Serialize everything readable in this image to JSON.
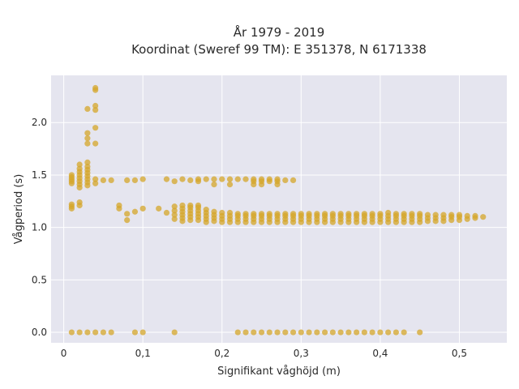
{
  "chart_data": {
    "type": "scatter",
    "title": "År 1979 - 2019",
    "subtitle": "Koordinat (Sweref 99 TM): E 351378, N 6171338",
    "xlabel": "Signifikant våghöjd (m)",
    "ylabel": "Vågperiod (s)",
    "xlim": [
      -0.016,
      0.56
    ],
    "ylim": [
      -0.1,
      2.45
    ],
    "xticks": [
      0,
      0.1,
      0.2,
      0.3,
      0.4,
      0.5
    ],
    "xtick_labels": [
      "0",
      "0,1",
      "0,2",
      "0,3",
      "0,4",
      "0,5"
    ],
    "yticks": [
      0,
      0.5,
      1,
      1.5,
      2
    ],
    "ytick_labels": [
      "0.0",
      "0.5",
      "1.0",
      "1.5",
      "2.0"
    ],
    "grid": true,
    "background": "#e5e5ef",
    "marker_color": "#d4a52a",
    "points": [
      [
        0.01,
        0
      ],
      [
        0.02,
        0
      ],
      [
        0.03,
        0
      ],
      [
        0.04,
        0
      ],
      [
        0.05,
        0
      ],
      [
        0.06,
        0
      ],
      [
        0.09,
        0
      ],
      [
        0.1,
        0
      ],
      [
        0.14,
        0
      ],
      [
        0.22,
        0
      ],
      [
        0.23,
        0
      ],
      [
        0.24,
        0
      ],
      [
        0.25,
        0
      ],
      [
        0.26,
        0
      ],
      [
        0.27,
        0
      ],
      [
        0.28,
        0
      ],
      [
        0.29,
        0
      ],
      [
        0.3,
        0
      ],
      [
        0.31,
        0
      ],
      [
        0.32,
        0
      ],
      [
        0.33,
        0
      ],
      [
        0.34,
        0
      ],
      [
        0.35,
        0
      ],
      [
        0.36,
        0
      ],
      [
        0.37,
        0
      ],
      [
        0.38,
        0
      ],
      [
        0.39,
        0
      ],
      [
        0.4,
        0
      ],
      [
        0.41,
        0
      ],
      [
        0.42,
        0
      ],
      [
        0.43,
        0
      ],
      [
        0.45,
        0
      ],
      [
        0.01,
        1.18
      ],
      [
        0.01,
        1.2
      ],
      [
        0.01,
        1.22
      ],
      [
        0.02,
        1.21
      ],
      [
        0.02,
        1.24
      ],
      [
        0.01,
        1.42
      ],
      [
        0.01,
        1.44
      ],
      [
        0.01,
        1.46
      ],
      [
        0.01,
        1.48
      ],
      [
        0.01,
        1.5
      ],
      [
        0.02,
        1.38
      ],
      [
        0.02,
        1.41
      ],
      [
        0.02,
        1.44
      ],
      [
        0.02,
        1.47
      ],
      [
        0.02,
        1.5
      ],
      [
        0.02,
        1.53
      ],
      [
        0.02,
        1.56
      ],
      [
        0.02,
        1.6
      ],
      [
        0.03,
        1.4
      ],
      [
        0.03,
        1.43
      ],
      [
        0.03,
        1.46
      ],
      [
        0.03,
        1.49
      ],
      [
        0.03,
        1.52
      ],
      [
        0.03,
        1.55
      ],
      [
        0.03,
        1.58
      ],
      [
        0.03,
        1.62
      ],
      [
        0.03,
        1.8
      ],
      [
        0.03,
        1.85
      ],
      [
        0.03,
        1.9
      ],
      [
        0.03,
        2.13
      ],
      [
        0.04,
        1.42
      ],
      [
        0.04,
        1.46
      ],
      [
        0.04,
        1.8
      ],
      [
        0.04,
        1.95
      ],
      [
        0.04,
        2.12
      ],
      [
        0.04,
        2.16
      ],
      [
        0.04,
        2.31
      ],
      [
        0.04,
        2.33
      ],
      [
        0.05,
        1.45
      ],
      [
        0.06,
        1.45
      ],
      [
        0.08,
        1.45
      ],
      [
        0.09,
        1.45
      ],
      [
        0.1,
        1.46
      ],
      [
        0.07,
        1.18
      ],
      [
        0.07,
        1.21
      ],
      [
        0.08,
        1.07
      ],
      [
        0.08,
        1.13
      ],
      [
        0.09,
        1.15
      ],
      [
        0.1,
        1.18
      ],
      [
        0.12,
        1.18
      ],
      [
        0.13,
        1.46
      ],
      [
        0.13,
        1.14
      ],
      [
        0.14,
        1.08
      ],
      [
        0.14,
        1.12
      ],
      [
        0.14,
        1.16
      ],
      [
        0.14,
        1.2
      ],
      [
        0.14,
        1.44
      ],
      [
        0.15,
        1.06
      ],
      [
        0.15,
        1.09
      ],
      [
        0.15,
        1.12
      ],
      [
        0.15,
        1.15
      ],
      [
        0.15,
        1.18
      ],
      [
        0.15,
        1.21
      ],
      [
        0.15,
        1.46
      ],
      [
        0.16,
        1.07
      ],
      [
        0.16,
        1.1
      ],
      [
        0.16,
        1.13
      ],
      [
        0.16,
        1.16
      ],
      [
        0.16,
        1.19
      ],
      [
        0.16,
        1.21
      ],
      [
        0.16,
        1.45
      ],
      [
        0.17,
        1.07
      ],
      [
        0.17,
        1.1
      ],
      [
        0.17,
        1.13
      ],
      [
        0.17,
        1.16
      ],
      [
        0.17,
        1.19
      ],
      [
        0.17,
        1.21
      ],
      [
        0.17,
        1.44
      ],
      [
        0.17,
        1.46
      ],
      [
        0.18,
        1.05
      ],
      [
        0.18,
        1.08
      ],
      [
        0.18,
        1.11
      ],
      [
        0.18,
        1.14
      ],
      [
        0.18,
        1.17
      ],
      [
        0.18,
        1.46
      ],
      [
        0.19,
        1.06
      ],
      [
        0.19,
        1.09
      ],
      [
        0.19,
        1.12
      ],
      [
        0.19,
        1.15
      ],
      [
        0.19,
        1.41
      ],
      [
        0.19,
        1.46
      ],
      [
        0.2,
        1.05
      ],
      [
        0.2,
        1.08
      ],
      [
        0.2,
        1.11
      ],
      [
        0.2,
        1.14
      ],
      [
        0.2,
        1.46
      ],
      [
        0.21,
        1.05
      ],
      [
        0.21,
        1.08
      ],
      [
        0.21,
        1.11
      ],
      [
        0.21,
        1.14
      ],
      [
        0.21,
        1.41
      ],
      [
        0.21,
        1.46
      ],
      [
        0.22,
        1.05
      ],
      [
        0.22,
        1.08
      ],
      [
        0.22,
        1.11
      ],
      [
        0.22,
        1.13
      ],
      [
        0.22,
        1.46
      ],
      [
        0.23,
        1.05
      ],
      [
        0.23,
        1.08
      ],
      [
        0.23,
        1.11
      ],
      [
        0.23,
        1.13
      ],
      [
        0.23,
        1.46
      ],
      [
        0.24,
        1.05
      ],
      [
        0.24,
        1.08
      ],
      [
        0.24,
        1.11
      ],
      [
        0.24,
        1.13
      ],
      [
        0.24,
        1.41
      ],
      [
        0.24,
        1.44
      ],
      [
        0.24,
        1.46
      ],
      [
        0.25,
        1.05
      ],
      [
        0.25,
        1.08
      ],
      [
        0.25,
        1.11
      ],
      [
        0.25,
        1.13
      ],
      [
        0.25,
        1.41
      ],
      [
        0.25,
        1.44
      ],
      [
        0.25,
        1.46
      ],
      [
        0.26,
        1.05
      ],
      [
        0.26,
        1.08
      ],
      [
        0.26,
        1.11
      ],
      [
        0.26,
        1.13
      ],
      [
        0.26,
        1.44
      ],
      [
        0.26,
        1.46
      ],
      [
        0.27,
        1.05
      ],
      [
        0.27,
        1.08
      ],
      [
        0.27,
        1.11
      ],
      [
        0.27,
        1.13
      ],
      [
        0.27,
        1.41
      ],
      [
        0.27,
        1.44
      ],
      [
        0.27,
        1.46
      ],
      [
        0.28,
        1.05
      ],
      [
        0.28,
        1.08
      ],
      [
        0.28,
        1.11
      ],
      [
        0.28,
        1.13
      ],
      [
        0.28,
        1.45
      ],
      [
        0.29,
        1.05
      ],
      [
        0.29,
        1.08
      ],
      [
        0.29,
        1.11
      ],
      [
        0.29,
        1.13
      ],
      [
        0.29,
        1.45
      ],
      [
        0.3,
        1.05
      ],
      [
        0.3,
        1.08
      ],
      [
        0.3,
        1.11
      ],
      [
        0.3,
        1.13
      ],
      [
        0.31,
        1.05
      ],
      [
        0.31,
        1.08
      ],
      [
        0.31,
        1.11
      ],
      [
        0.31,
        1.13
      ],
      [
        0.32,
        1.05
      ],
      [
        0.32,
        1.08
      ],
      [
        0.32,
        1.11
      ],
      [
        0.32,
        1.13
      ],
      [
        0.33,
        1.05
      ],
      [
        0.33,
        1.08
      ],
      [
        0.33,
        1.11
      ],
      [
        0.33,
        1.13
      ],
      [
        0.34,
        1.05
      ],
      [
        0.34,
        1.08
      ],
      [
        0.34,
        1.11
      ],
      [
        0.34,
        1.13
      ],
      [
        0.35,
        1.05
      ],
      [
        0.35,
        1.08
      ],
      [
        0.35,
        1.11
      ],
      [
        0.35,
        1.13
      ],
      [
        0.36,
        1.05
      ],
      [
        0.36,
        1.08
      ],
      [
        0.36,
        1.11
      ],
      [
        0.36,
        1.13
      ],
      [
        0.37,
        1.05
      ],
      [
        0.37,
        1.08
      ],
      [
        0.37,
        1.11
      ],
      [
        0.37,
        1.13
      ],
      [
        0.38,
        1.05
      ],
      [
        0.38,
        1.08
      ],
      [
        0.38,
        1.11
      ],
      [
        0.38,
        1.13
      ],
      [
        0.39,
        1.05
      ],
      [
        0.39,
        1.08
      ],
      [
        0.39,
        1.11
      ],
      [
        0.39,
        1.13
      ],
      [
        0.4,
        1.05
      ],
      [
        0.4,
        1.08
      ],
      [
        0.4,
        1.11
      ],
      [
        0.4,
        1.13
      ],
      [
        0.41,
        1.05
      ],
      [
        0.41,
        1.08
      ],
      [
        0.41,
        1.11
      ],
      [
        0.41,
        1.14
      ],
      [
        0.42,
        1.05
      ],
      [
        0.42,
        1.08
      ],
      [
        0.42,
        1.11
      ],
      [
        0.42,
        1.13
      ],
      [
        0.43,
        1.05
      ],
      [
        0.43,
        1.08
      ],
      [
        0.43,
        1.11
      ],
      [
        0.43,
        1.13
      ],
      [
        0.44,
        1.05
      ],
      [
        0.44,
        1.08
      ],
      [
        0.44,
        1.11
      ],
      [
        0.44,
        1.13
      ],
      [
        0.45,
        1.05
      ],
      [
        0.45,
        1.08
      ],
      [
        0.45,
        1.11
      ],
      [
        0.45,
        1.13
      ],
      [
        0.46,
        1.06
      ],
      [
        0.46,
        1.09
      ],
      [
        0.46,
        1.12
      ],
      [
        0.47,
        1.06
      ],
      [
        0.47,
        1.09
      ],
      [
        0.47,
        1.12
      ],
      [
        0.48,
        1.06
      ],
      [
        0.48,
        1.09
      ],
      [
        0.48,
        1.12
      ],
      [
        0.49,
        1.07
      ],
      [
        0.49,
        1.1
      ],
      [
        0.49,
        1.12
      ],
      [
        0.5,
        1.07
      ],
      [
        0.5,
        1.1
      ],
      [
        0.5,
        1.12
      ],
      [
        0.51,
        1.08
      ],
      [
        0.51,
        1.11
      ],
      [
        0.52,
        1.09
      ],
      [
        0.52,
        1.11
      ],
      [
        0.53,
        1.1
      ]
    ]
  }
}
